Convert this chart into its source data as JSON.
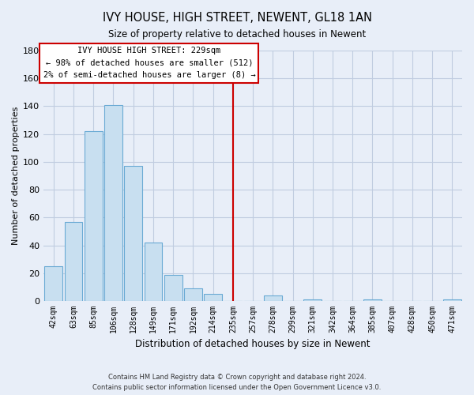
{
  "title": "IVY HOUSE, HIGH STREET, NEWENT, GL18 1AN",
  "subtitle": "Size of property relative to detached houses in Newent",
  "xlabel": "Distribution of detached houses by size in Newent",
  "ylabel": "Number of detached properties",
  "bar_labels": [
    "42sqm",
    "63sqm",
    "85sqm",
    "106sqm",
    "128sqm",
    "149sqm",
    "171sqm",
    "192sqm",
    "214sqm",
    "235sqm",
    "257sqm",
    "278sqm",
    "299sqm",
    "321sqm",
    "342sqm",
    "364sqm",
    "385sqm",
    "407sqm",
    "428sqm",
    "450sqm",
    "471sqm"
  ],
  "bar_values": [
    25,
    57,
    122,
    141,
    97,
    42,
    19,
    9,
    5,
    0,
    0,
    4,
    0,
    1,
    0,
    0,
    1,
    0,
    0,
    0,
    1
  ],
  "bar_color": "#c8dff0",
  "bar_edge_color": "#6aaad4",
  "ylim": [
    0,
    180
  ],
  "yticks": [
    0,
    20,
    40,
    60,
    80,
    100,
    120,
    140,
    160,
    180
  ],
  "vline_x": 9.0,
  "vline_color": "#cc0000",
  "annotation_title": "IVY HOUSE HIGH STREET: 229sqm",
  "annotation_line1": "← 98% of detached houses are smaller (512)",
  "annotation_line2": "2% of semi-detached houses are larger (8) →",
  "annotation_box_color": "#ffffff",
  "annotation_box_edge": "#cc0000",
  "footer_line1": "Contains HM Land Registry data © Crown copyright and database right 2024.",
  "footer_line2": "Contains public sector information licensed under the Open Government Licence v3.0.",
  "bg_color": "#e8eef8",
  "grid_color": "#c0cce0"
}
